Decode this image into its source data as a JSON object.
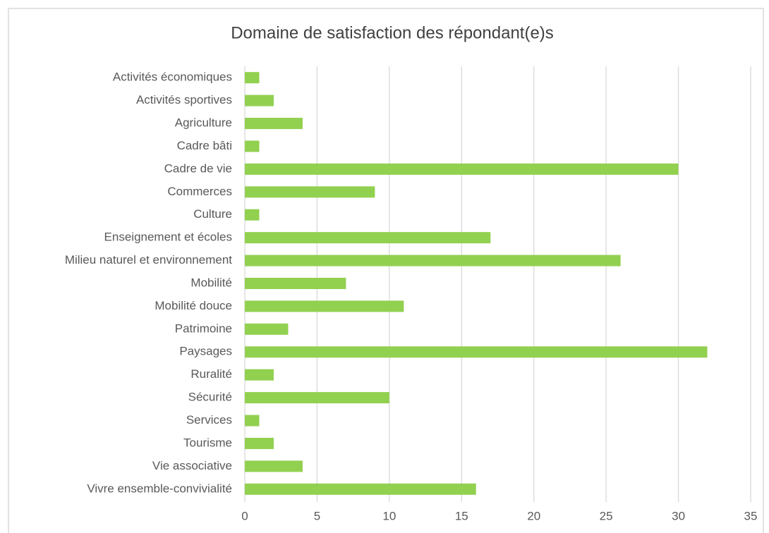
{
  "chart_data": {
    "type": "bar",
    "orientation": "horizontal",
    "title": "Domaine de satisfaction des répondant(e)s",
    "categories": [
      "Activités économiques",
      "Activités sportives",
      "Agriculture",
      "Cadre bâti",
      "Cadre de vie",
      "Commerces",
      "Culture",
      "Enseignement et écoles",
      "Milieu naturel et environnement",
      "Mobilité",
      "Mobilité douce",
      "Patrimoine",
      "Paysages",
      "Ruralité",
      "Sécurité",
      "Services",
      "Tourisme",
      "Vie associative",
      "Vivre ensemble-convivialité"
    ],
    "values": [
      1,
      2,
      4,
      1,
      30,
      9,
      1,
      17,
      26,
      7,
      11,
      3,
      32,
      2,
      10,
      1,
      2,
      4,
      16
    ],
    "color": "#92d050",
    "xlim": [
      0,
      35
    ],
    "xticks": [
      0,
      5,
      10,
      15,
      20,
      25,
      30,
      35
    ],
    "grid": true
  }
}
